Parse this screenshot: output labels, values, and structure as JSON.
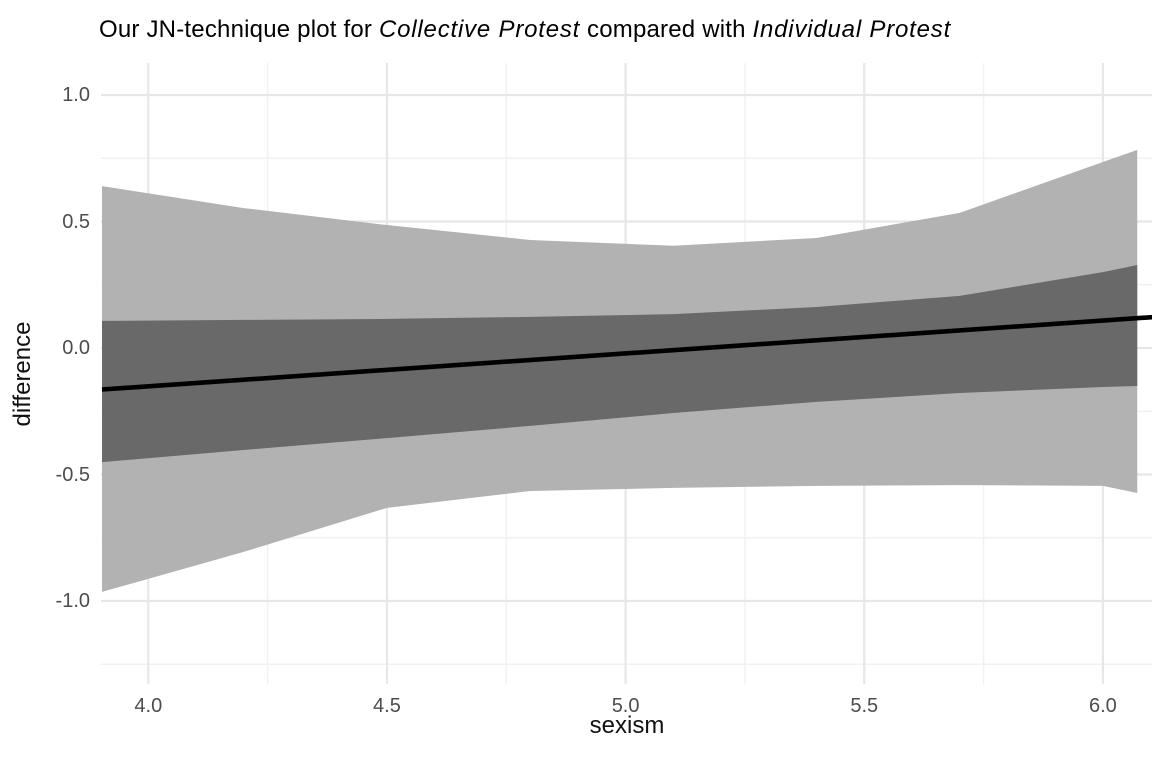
{
  "title": {
    "part1": "Our JN-technique plot for ",
    "italic1": "Collective Protest",
    "part2": " compared with ",
    "italic2": "Individual Protest"
  },
  "chart_data": {
    "type": "area",
    "title": "Our JN-technique plot for Collective Protest compared with Individual Protest",
    "xlabel": "sexism",
    "ylabel": "difference",
    "grid": "on",
    "legend": "none",
    "xlim": [
      3.9,
      6.1
    ],
    "ylim": [
      -1.33,
      1.13
    ],
    "x_ticks": [
      4.0,
      4.5,
      5.0,
      5.5,
      6.0
    ],
    "x_minor_ticks": [
      4.25,
      4.75,
      5.25,
      5.75
    ],
    "y_ticks": [
      1.0,
      0.5,
      0.0,
      -0.5,
      -1.0
    ],
    "y_minor_ticks": [
      0.75,
      0.25,
      -0.25,
      -0.75,
      -1.25
    ],
    "x": [
      3.903,
      4.2,
      4.5,
      4.8,
      5.1,
      5.4,
      5.7,
      6.0,
      6.072
    ],
    "series": [
      {
        "name": "outer_ci_upper",
        "values": [
          0.64,
          0.553,
          0.486,
          0.427,
          0.404,
          0.435,
          0.534,
          0.735,
          0.783
        ]
      },
      {
        "name": "outer_ci_lower",
        "values": [
          -0.964,
          -0.806,
          -0.632,
          -0.565,
          -0.553,
          -0.545,
          -0.542,
          -0.545,
          -0.573
        ]
      },
      {
        "name": "inner_ci_upper",
        "values": [
          0.107,
          0.111,
          0.115,
          0.123,
          0.134,
          0.162,
          0.206,
          0.3,
          0.328
        ]
      },
      {
        "name": "inner_ci_lower",
        "values": [
          -0.451,
          -0.403,
          -0.356,
          -0.308,
          -0.257,
          -0.213,
          -0.178,
          -0.154,
          -0.15
        ]
      },
      {
        "name": "estimate_line",
        "values": [
          -0.164,
          -0.125,
          -0.086,
          -0.047,
          -0.008,
          0.031,
          0.07,
          0.109,
          0.118
        ]
      }
    ],
    "line_extent": {
      "x": [
        3.903,
        6.103
      ],
      "y": [
        -0.164,
        0.122
      ]
    },
    "colors": {
      "outer_band": "#b2b2b2",
      "inner_band": "#696969",
      "line": "#000000",
      "grid_major": "#e7e7e7",
      "grid_minor": "#f1f1f1",
      "tick_text": "#4d4d4d",
      "axis_title": "#111111",
      "title_text": "#000000",
      "background": "#ffffff"
    }
  }
}
